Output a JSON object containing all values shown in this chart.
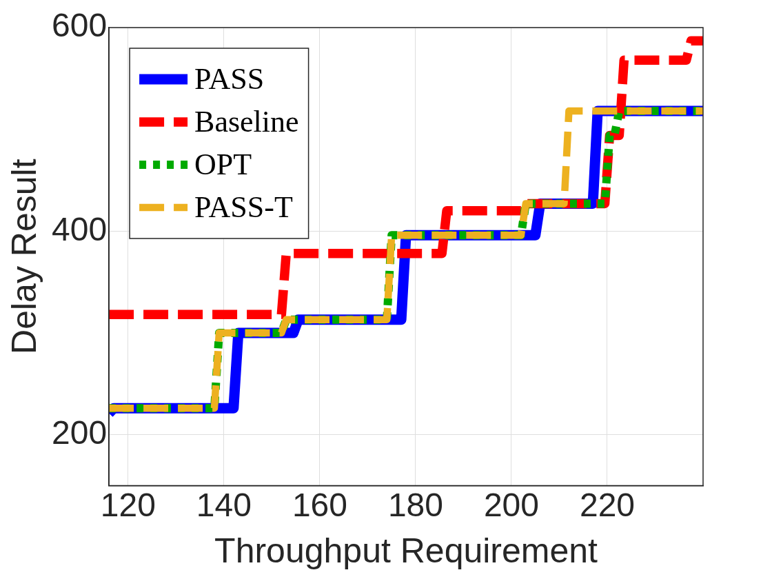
{
  "chart_data": {
    "type": "line",
    "xlabel": "Throughput Requirement",
    "ylabel": "Delay Result",
    "xlim": [
      116,
      240
    ],
    "xticks": [
      120,
      140,
      160,
      180,
      200,
      220
    ],
    "ylim": [
      150,
      600
    ],
    "yticks": [
      200,
      400,
      600
    ],
    "grid": true,
    "legend": "top left",
    "marker": "none",
    "series": [
      {
        "name": "PASS",
        "color": "#0000ff",
        "line_style": "solid",
        "x": [
          116,
          117,
          142,
          143,
          154.5,
          155.5,
          177,
          178,
          205,
          206,
          217,
          218,
          240
        ],
        "values": [
          221,
          226,
          226,
          300,
          300,
          313,
          313,
          396,
          396,
          427,
          427,
          518,
          518
        ]
      },
      {
        "name": "Baseline",
        "color": "#ff0000",
        "line_style": "dashed",
        "x": [
          116,
          152,
          153,
          185.5,
          186.5,
          202,
          203,
          219.5,
          220.5,
          222.5,
          223.5,
          236.5,
          237.5,
          240
        ],
        "values": [
          318,
          318,
          378,
          378,
          420,
          420,
          427,
          427,
          494,
          494,
          568,
          568,
          587,
          587
        ]
      },
      {
        "name": "OPT",
        "color": "#00aa00",
        "line_style": "dotted",
        "x": [
          116,
          138,
          139,
          152,
          153,
          174,
          175,
          202,
          203,
          219.5,
          220.5,
          221.5,
          222.5,
          240
        ],
        "values": [
          226,
          226,
          300,
          300,
          313,
          313,
          396,
          396,
          427,
          427,
          494,
          494,
          518,
          518
        ]
      },
      {
        "name": "PASS-T",
        "color": "#edb120",
        "line_style": "dashed",
        "x": [
          116,
          138,
          139,
          152,
          153,
          174,
          175,
          202,
          203,
          211,
          212,
          240
        ],
        "values": [
          226,
          226,
          300,
          300,
          313,
          313,
          396,
          396,
          427,
          427,
          518,
          518
        ]
      }
    ]
  }
}
